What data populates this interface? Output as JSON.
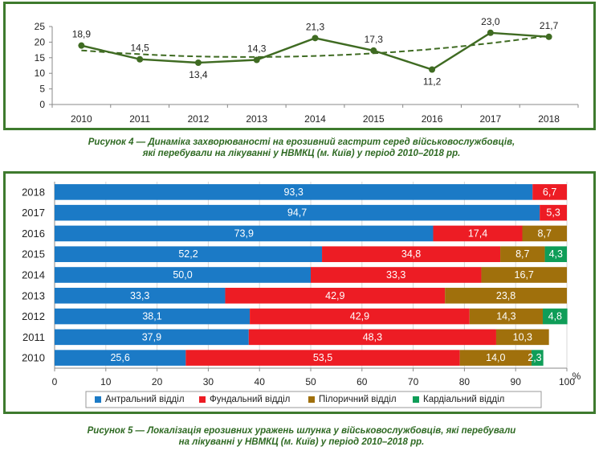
{
  "chart_data": [
    {
      "type": "line",
      "x": [
        "2010",
        "2011",
        "2012",
        "2013",
        "2014",
        "2015",
        "2016",
        "2017",
        "2018"
      ],
      "series": [
        {
          "values": [
            18.9,
            14.5,
            13.4,
            14.3,
            21.3,
            17.3,
            11.2,
            23.0,
            21.7
          ]
        }
      ],
      "data_labels": [
        "18,9",
        "14,5",
        "13,4",
        "14,3",
        "21,3",
        "17,3",
        "11,2",
        "23,0",
        "21,7"
      ],
      "trendline": {
        "style": "dashed",
        "type": "polynomial"
      },
      "y_ticks": [
        "0",
        "5",
        "10",
        "15",
        "20",
        "25"
      ],
      "ylim": [
        0,
        25
      ],
      "grid": false,
      "colors": {
        "line": "#3f6b22",
        "trend": "#3f6b22",
        "axis": "#888888"
      },
      "caption": [
        "Рисунок 4 — Динаміка захворюваності на ерозивний гастрит серед військовослужбовців,",
        "які перебували на лікуванні у НВМКЦ (м. Київ) у період 2010–2018 рр."
      ]
    },
    {
      "type": "bar",
      "orientation": "horizontal",
      "stacked": true,
      "categories": [
        "2018",
        "2017",
        "2016",
        "2015",
        "2014",
        "2013",
        "2012",
        "2011",
        "2010"
      ],
      "series": [
        {
          "name": "Антральний відділ",
          "color": "#1b7ac6",
          "values": [
            93.3,
            94.7,
            73.9,
            52.2,
            50.0,
            33.3,
            38.1,
            37.9,
            25.6
          ],
          "labels": [
            "93,3",
            "94,7",
            "73,9",
            "52,2",
            "50,0",
            "33,3",
            "38,1",
            "37,9",
            "25,6"
          ]
        },
        {
          "name": "Фундальний відділ",
          "color": "#ed1c24",
          "values": [
            6.7,
            5.3,
            17.4,
            34.8,
            33.3,
            42.9,
            42.9,
            48.3,
            53.5
          ],
          "labels": [
            "6,7",
            "5,3",
            "17,4",
            "34,8",
            "33,3",
            "42,9",
            "42,9",
            "48,3",
            "53,5"
          ]
        },
        {
          "name": "Пілоричний  відділ",
          "color": "#a0700c",
          "values": [
            0,
            0,
            8.7,
            8.7,
            16.7,
            23.8,
            14.3,
            10.3,
            14.0
          ],
          "labels": [
            "",
            "",
            "8,7",
            "8,7",
            "16,7",
            "23,8",
            "14,3",
            "10,3",
            "14,0"
          ]
        },
        {
          "name": "Кардіальний відділ",
          "color": "#0f9d58",
          "values": [
            0,
            0,
            0,
            4.3,
            0,
            0,
            4.8,
            0,
            2.3
          ],
          "labels": [
            "",
            "",
            "",
            "4,3",
            "",
            "",
            "4,8",
            "",
            "2,3"
          ]
        }
      ],
      "x_ticks": [
        "0",
        "10",
        "20",
        "30",
        "40",
        "50",
        "60",
        "70",
        "80",
        "90",
        "100"
      ],
      "xlim": [
        0,
        100
      ],
      "unit_label": "%",
      "grid": true,
      "legend_position": "bottom",
      "caption": [
        "Рисунок 5 — Локалізація ерозивних уражень шлунка у військовослужбовців, які перебували",
        "на лікуванні у НВМКЦ (м. Київ) у період 2010–2018 рр."
      ]
    }
  ]
}
